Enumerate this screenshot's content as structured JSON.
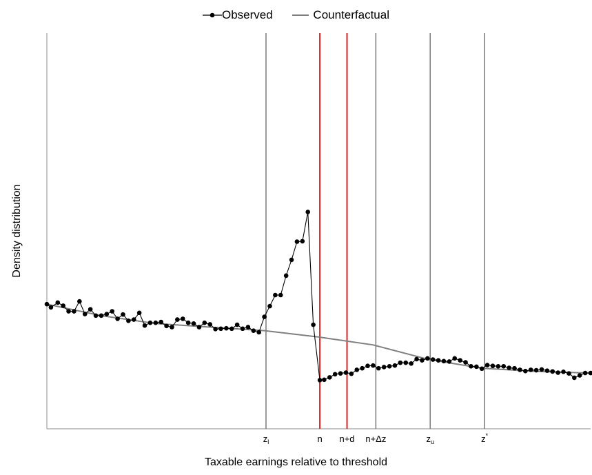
{
  "chart_data": {
    "type": "line",
    "xlabel": "Taxable earnings relative to threshold",
    "ylabel": "Density distribution",
    "legend": {
      "position": "top-center",
      "entries": [
        "Observed",
        "Counterfactual"
      ]
    },
    "grid": false,
    "xlim": [
      0,
      100
    ],
    "ylim": [
      0,
      100
    ],
    "colors": {
      "observed": "#000000",
      "counterfactual": "#808080",
      "marker_lines": "#808080",
      "threshold_lines": "#e02020"
    },
    "reference_lines": [
      {
        "label": "z",
        "sub": "l",
        "sup": "",
        "x": 40.3,
        "color": "gray"
      },
      {
        "label": "n",
        "sub": "",
        "sup": "",
        "x": 50.2,
        "color": "red"
      },
      {
        "label": "n+d",
        "sub": "",
        "sup": "",
        "x": 55.2,
        "color": "red"
      },
      {
        "label": "n+Δz",
        "sub": "",
        "sup": "",
        "x": 60.5,
        "color": "gray"
      },
      {
        "label": "z",
        "sub": "u",
        "sup": "",
        "x": 70.5,
        "color": "gray"
      },
      {
        "label": "z",
        "sub": "",
        "sup": "*",
        "x": 80.5,
        "color": "gray"
      }
    ],
    "series": [
      {
        "name": "Observed",
        "style": "line-marker",
        "x": [
          0,
          0.75,
          2,
          3,
          4,
          5,
          6,
          7,
          8,
          9,
          10,
          11,
          12,
          13,
          14,
          15,
          16,
          17,
          18,
          19,
          20,
          21,
          22,
          23,
          24,
          25,
          26,
          27,
          28,
          29,
          30,
          31,
          32,
          33,
          34,
          35,
          36,
          37,
          38,
          39,
          40,
          41,
          42,
          43,
          44,
          45,
          46,
          47,
          48,
          49,
          50.2,
          51,
          52,
          53,
          54,
          55,
          56,
          57,
          58,
          59,
          60,
          61,
          62,
          63,
          64,
          65,
          66,
          67,
          68,
          69,
          70,
          71,
          72,
          73,
          74,
          75,
          76,
          77,
          78,
          79,
          80,
          81,
          82,
          83,
          84,
          85,
          86,
          87,
          88,
          89,
          90,
          91,
          92,
          93,
          94,
          95,
          96,
          97,
          98,
          99,
          100
        ],
        "y": [
          31.5,
          30.7,
          31.9,
          31.1,
          29.7,
          29.7,
          32.2,
          29.0,
          30.2,
          28.6,
          28.6,
          29.0,
          29.7,
          27.8,
          28.9,
          27.3,
          27.6,
          29.3,
          26.1,
          26.8,
          26.8,
          27.0,
          26.0,
          25.7,
          27.6,
          27.8,
          26.8,
          26.6,
          25.7,
          26.8,
          26.4,
          25.2,
          25.3,
          25.4,
          25.3,
          26.3,
          25.3,
          25.7,
          24.8,
          24.4,
          28.3,
          31.0,
          33.8,
          33.8,
          38.7,
          42.7,
          47.3,
          47.4,
          54.8,
          26.3,
          12.3,
          12.4,
          13.0,
          13.8,
          14.0,
          14.2,
          13.9,
          14.9,
          15.3,
          15.9,
          16.0,
          15.3,
          15.6,
          15.8,
          16.0,
          16.7,
          16.7,
          16.5,
          17.6,
          17.3,
          17.8,
          17.5,
          17.3,
          17.1,
          17.0,
          17.8,
          17.3,
          16.8,
          15.8,
          15.7,
          15.2,
          16.1,
          15.9,
          15.8,
          15.8,
          15.4,
          15.3,
          14.9,
          14.6,
          14.9,
          14.8,
          15.0,
          14.7,
          14.5,
          14.2,
          14.4,
          14.0,
          12.9,
          13.5,
          14.1,
          14.1
        ]
      },
      {
        "name": "Counterfactual",
        "style": "line",
        "x": [
          0,
          10,
          20,
          30,
          40,
          50,
          60,
          70,
          80,
          90,
          100
        ],
        "y": [
          31.5,
          28.6,
          26.6,
          25.7,
          24.8,
          23.2,
          21.2,
          17.6,
          15.3,
          14.5,
          14.1
        ]
      }
    ],
    "ticks": "none"
  }
}
